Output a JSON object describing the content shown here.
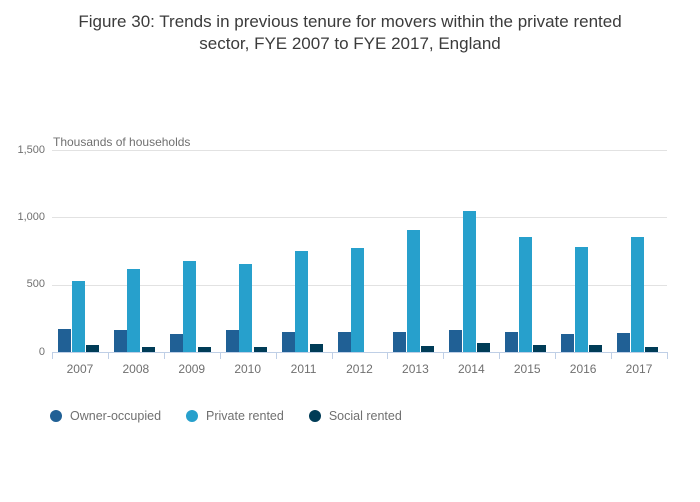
{
  "title": {
    "full": "Figure 30: Trends in previous tenure for movers within the private rented sector, FYE 2007 to FYE 2017, England",
    "lines": [
      "Figure 30: Trends in previous tenure for movers within the private rented",
      "sector, FYE 2007 to FYE 2017, England"
    ]
  },
  "chart_data": {
    "type": "bar",
    "title": "Figure 30: Trends in previous tenure for movers within the private rented sector, FYE 2007 to FYE 2017, England",
    "xlabel": "",
    "ylabel": "Thousands of households",
    "categories": [
      "2007",
      "2008",
      "2009",
      "2010",
      "2011",
      "2012",
      "2013",
      "2014",
      "2015",
      "2016",
      "2017"
    ],
    "series": [
      {
        "name": "Owner-occupied",
        "color": "#206095",
        "values": [
          170,
          160,
          135,
          165,
          150,
          145,
          150,
          165,
          150,
          130,
          140
        ]
      },
      {
        "name": "Private rented",
        "color": "#27a0cc",
        "values": [
          530,
          620,
          675,
          655,
          750,
          775,
          905,
          1045,
          855,
          780,
          855
        ]
      },
      {
        "name": "Social rented",
        "color": "#003c57",
        "values": [
          55,
          35,
          40,
          40,
          60,
          0,
          45,
          70,
          55,
          50,
          35
        ]
      }
    ],
    "ylim": [
      0,
      1500
    ],
    "y_ticks": [
      {
        "value": 0,
        "label": "0"
      },
      {
        "value": 500,
        "label": "500"
      },
      {
        "value": 1000,
        "label": "1,000"
      },
      {
        "value": 1500,
        "label": "1,500"
      }
    ],
    "grid": true,
    "legend_position": "bottom"
  },
  "colors": {
    "grid": "#e2e2e2",
    "axis": "#bfcfe6",
    "muted_text": "#707070",
    "title_text": "#3b3b3b",
    "background": "#ffffff"
  }
}
